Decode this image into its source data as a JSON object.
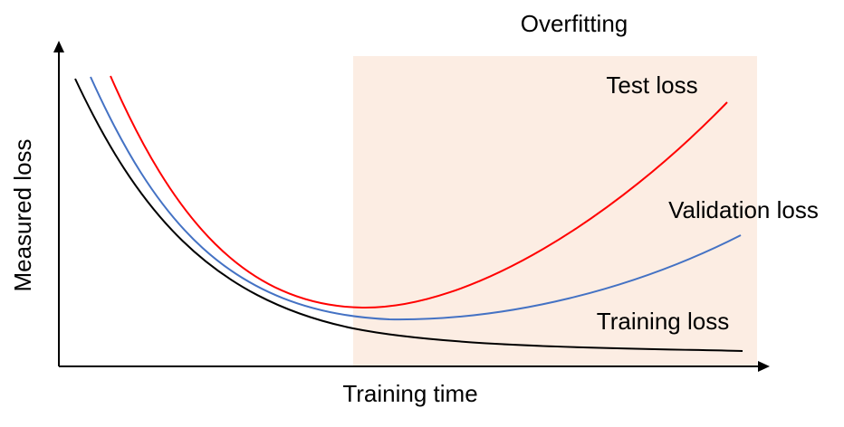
{
  "title": "Overfitting",
  "axes": {
    "x_label": "Training time",
    "y_label": "Measured loss"
  },
  "curves": [
    {
      "label": "Test loss"
    },
    {
      "label": "Validation loss"
    },
    {
      "label": "Training loss"
    }
  ]
}
